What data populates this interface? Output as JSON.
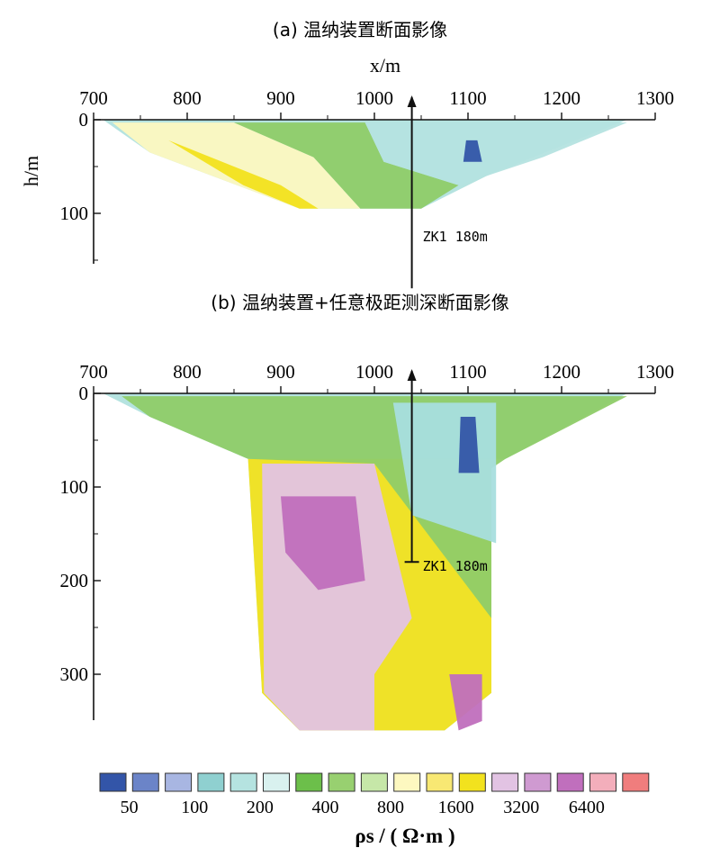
{
  "chart_data": [
    {
      "type": "heatmap",
      "title": "(a) 温纳装置断面影像",
      "xlabel": "x/m",
      "ylabel": "h/m",
      "xlim": [
        700,
        1300
      ],
      "ylim": [
        0,
        150
      ],
      "x_ticks": [
        "700",
        "800",
        "900",
        "1000",
        "1100",
        "1200",
        "1300"
      ],
      "y_ticks": [
        "0",
        "100"
      ],
      "section_outline": [
        [
          710,
          0
        ],
        [
          1270,
          0
        ],
        [
          1120,
          60
        ],
        [
          1050,
          95
        ],
        [
          920,
          95
        ],
        [
          760,
          35
        ]
      ],
      "zones": [
        {
          "band": "800-1600",
          "points": [
            [
              720,
              3
            ],
            [
              850,
              3
            ],
            [
              935,
              40
            ],
            [
              985,
              95
            ],
            [
              920,
              95
            ],
            [
              760,
              35
            ]
          ]
        },
        {
          "band": "1600-3200",
          "points": [
            [
              780,
              22
            ],
            [
              900,
              70
            ],
            [
              940,
              95
            ],
            [
              920,
              95
            ],
            [
              860,
              70
            ]
          ]
        },
        {
          "band": "400-800",
          "points": [
            [
              850,
              3
            ],
            [
              990,
              3
            ],
            [
              1010,
              45
            ],
            [
              1090,
              70
            ],
            [
              1050,
              95
            ],
            [
              985,
              95
            ],
            [
              935,
              40
            ]
          ]
        },
        {
          "band": "200-400",
          "points": [
            [
              990,
              3
            ],
            [
              1270,
              3
            ],
            [
              1180,
              40
            ],
            [
              1120,
              60
            ],
            [
              1090,
              70
            ],
            [
              1010,
              45
            ]
          ]
        },
        {
          "band": "50-100",
          "points": [
            [
              1098,
              22
            ],
            [
              1110,
              22
            ],
            [
              1115,
              45
            ],
            [
              1095,
              45
            ]
          ]
        }
      ],
      "borehole": {
        "x": 1040,
        "depth": 180,
        "label": "ZK1 180m"
      }
    },
    {
      "type": "heatmap",
      "title": "(b) 温纳装置+任意极距测深断面影像",
      "xlabel": "",
      "ylabel": "",
      "xlim": [
        700,
        1300
      ],
      "ylim": [
        0,
        350
      ],
      "x_ticks": [
        "700",
        "800",
        "900",
        "1000",
        "1100",
        "1200",
        "1300"
      ],
      "y_ticks": [
        "0",
        "100",
        "200",
        "300"
      ],
      "section_outline": [
        [
          710,
          0
        ],
        [
          1270,
          0
        ],
        [
          1140,
          70
        ],
        [
          1125,
          70
        ],
        [
          1125,
          320
        ],
        [
          1075,
          360
        ],
        [
          920,
          360
        ],
        [
          880,
          320
        ],
        [
          865,
          70
        ],
        [
          760,
          25
        ]
      ],
      "zones": [
        {
          "band": "1600-3200",
          "points": [
            [
              865,
              70
            ],
            [
              1125,
              70
            ],
            [
              1125,
              320
            ],
            [
              1075,
              360
            ],
            [
              920,
              360
            ],
            [
              880,
              320
            ]
          ]
        },
        {
          "band": "3200-6400",
          "points": [
            [
              880,
              75
            ],
            [
              1000,
              75
            ],
            [
              1040,
              240
            ],
            [
              1000,
              300
            ],
            [
              1000,
              360
            ],
            [
              920,
              360
            ],
            [
              882,
              320
            ]
          ]
        },
        {
          "band": "6400-12800",
          "points": [
            [
              900,
              110
            ],
            [
              980,
              110
            ],
            [
              990,
              200
            ],
            [
              940,
              210
            ],
            [
              905,
              170
            ]
          ]
        },
        {
          "band": "400-800",
          "points": [
            [
              730,
              3
            ],
            [
              1270,
              3
            ],
            [
              1140,
              70
            ],
            [
              1125,
              80
            ],
            [
              1125,
              240
            ],
            [
              1000,
              75
            ],
            [
              865,
              70
            ],
            [
              760,
              25
            ]
          ]
        },
        {
          "band": "100-400",
          "points": [
            [
              1020,
              10
            ],
            [
              1130,
              10
            ],
            [
              1130,
              160
            ],
            [
              1040,
              130
            ]
          ]
        },
        {
          "band": "50-100",
          "points": [
            [
              1092,
              25
            ],
            [
              1108,
              25
            ],
            [
              1112,
              85
            ],
            [
              1090,
              85
            ]
          ]
        },
        {
          "band": "6400-12800",
          "points": [
            [
              1080,
              300
            ],
            [
              1115,
              300
            ],
            [
              1115,
              350
            ],
            [
              1090,
              360
            ]
          ]
        }
      ],
      "borehole": {
        "x": 1040,
        "depth": 180,
        "label": "ZK1 180m"
      }
    }
  ],
  "colorbar": {
    "label": "ρs / ( Ω·m )",
    "colors": [
      "#3355a8",
      "#6b84c8",
      "#a8b6e2",
      "#8fd0d0",
      "#b5e3e0",
      "#d9f1ef",
      "#6cbf4a",
      "#98d070",
      "#c6e7a8",
      "#fdf8c0",
      "#f8e873",
      "#f2e21e",
      "#e2c3e3",
      "#cf9ad1",
      "#c06fbd",
      "#f3aebb",
      "#f07d7d"
    ],
    "tick_labels": [
      "50",
      "100",
      "200",
      "400",
      "800",
      "1600",
      "3200",
      "6400"
    ]
  },
  "band_colors": {
    "50-100": "#3355a8",
    "100-400": "#a8dede",
    "200-400": "#b5e3e0",
    "400-800": "#8fcc68",
    "800-1600": "#fdf8c0",
    "1600-3200": "#f2e21e",
    "3200-6400": "#e2c3e3",
    "6400-12800": "#c06fbd"
  }
}
